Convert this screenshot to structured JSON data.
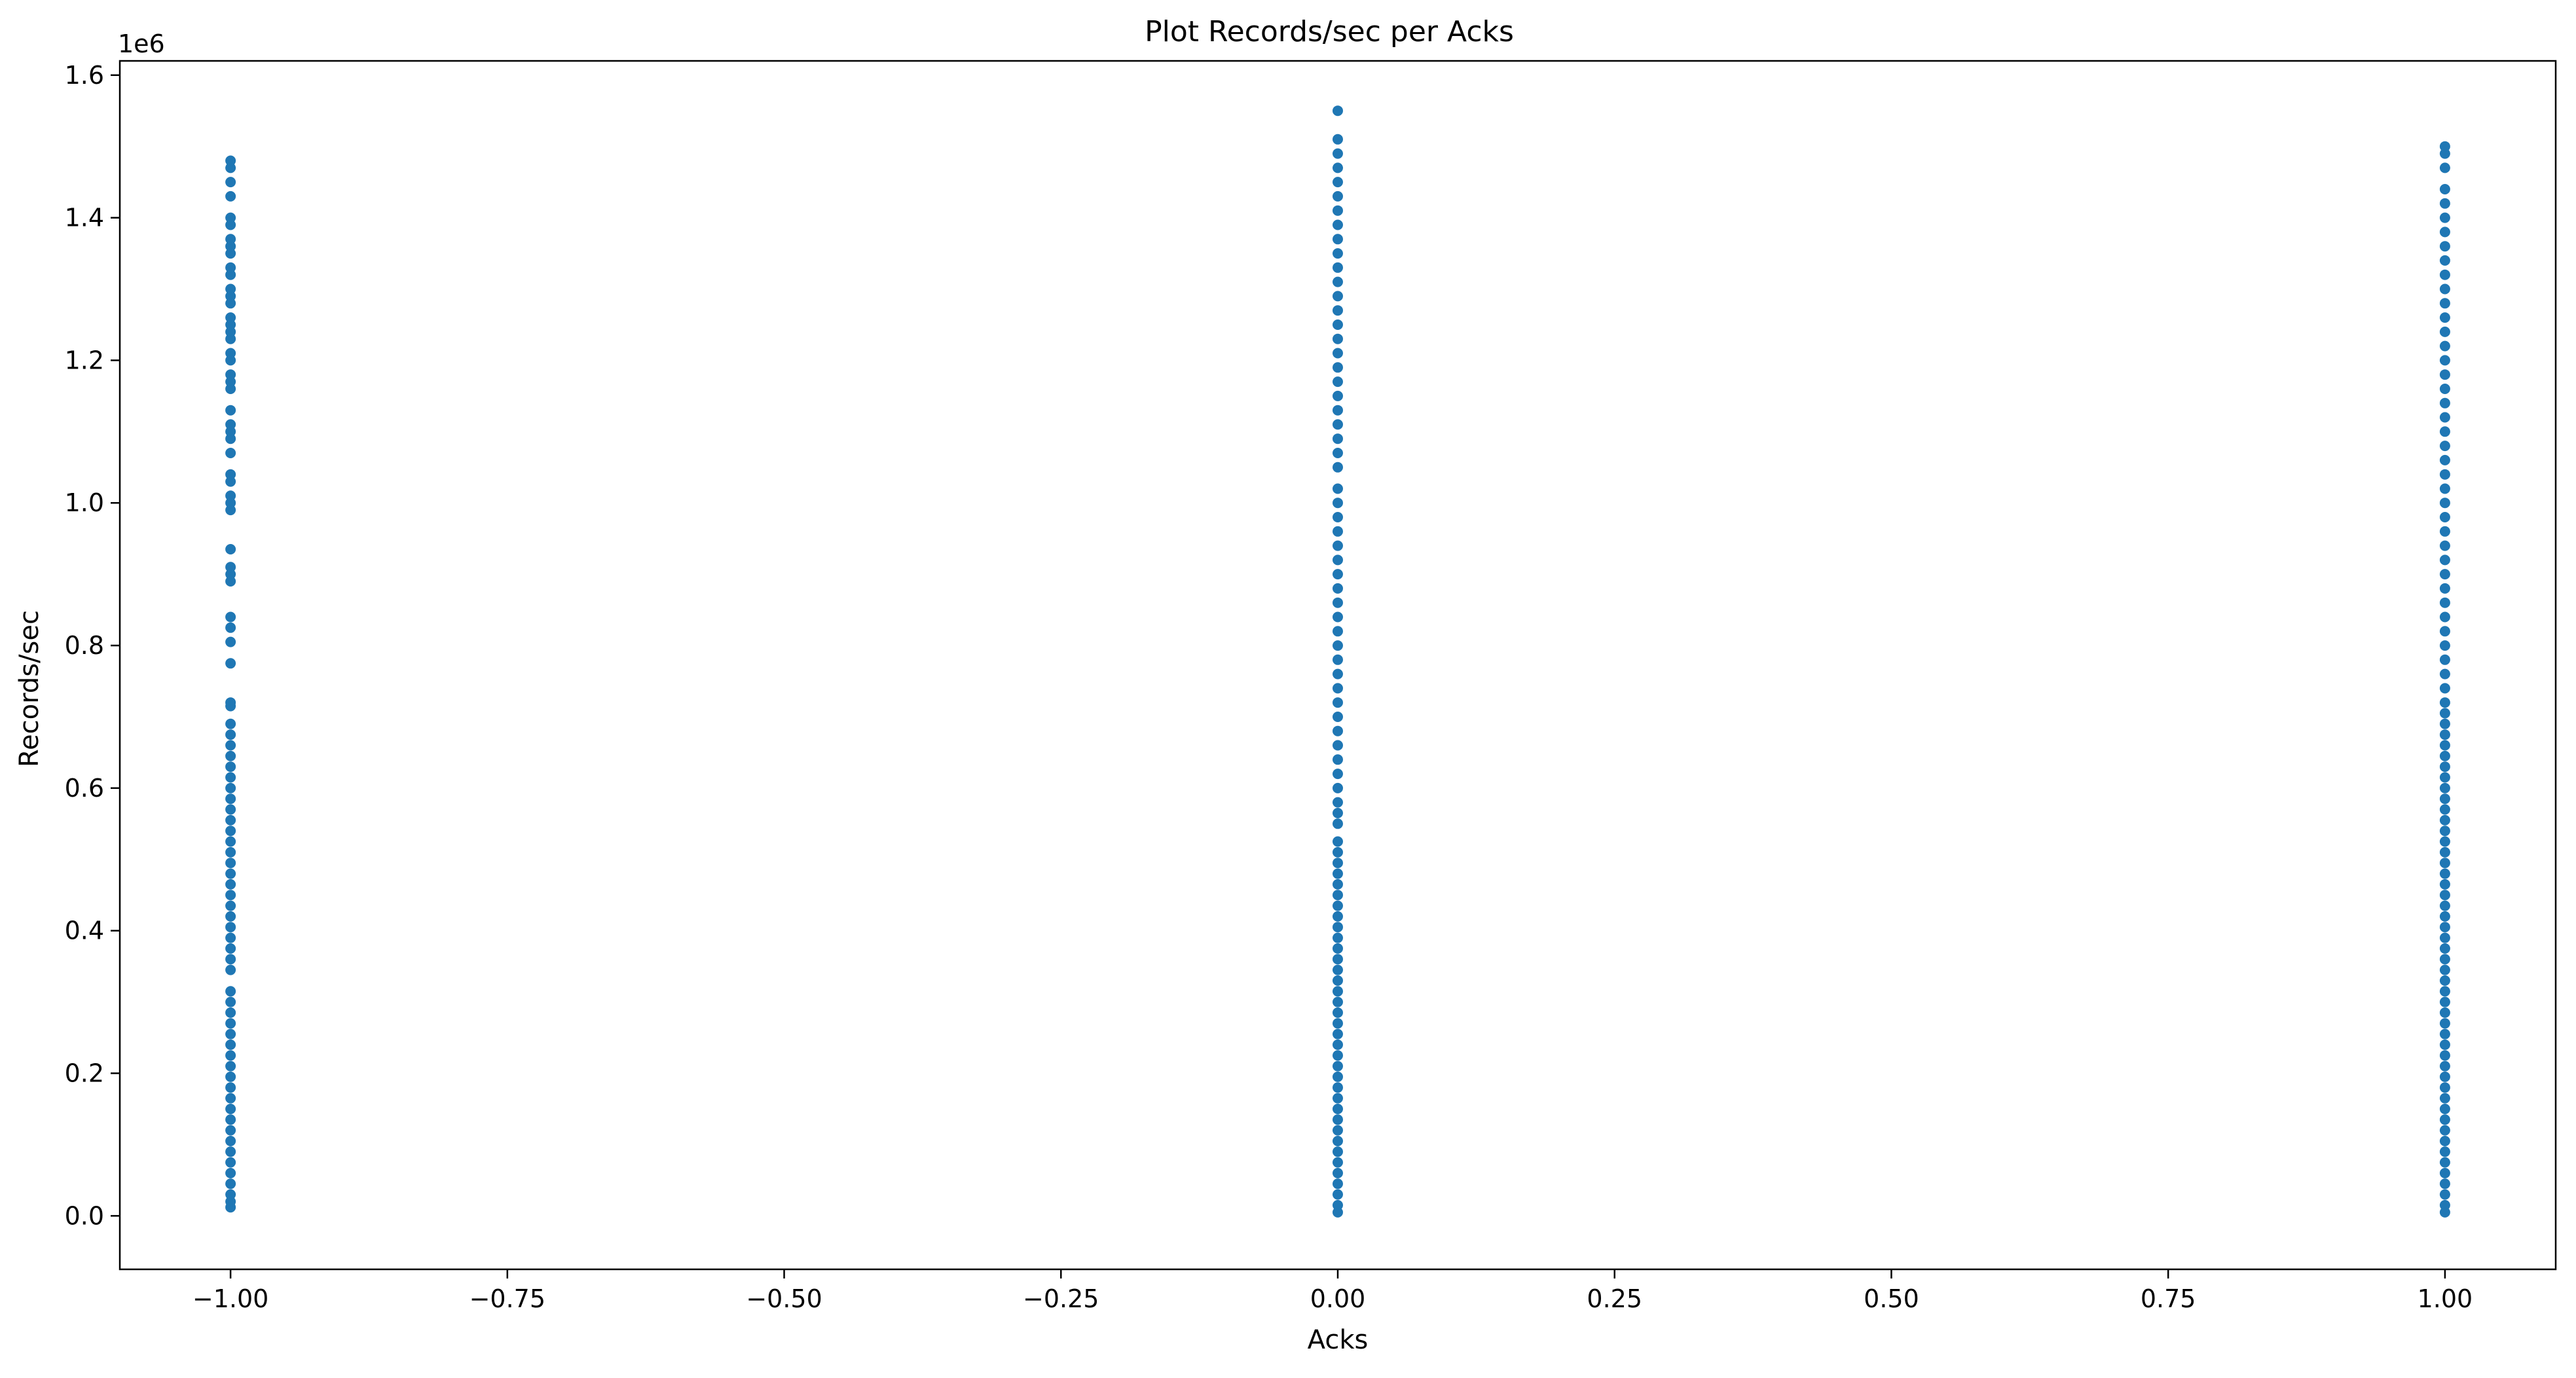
{
  "chart_data": {
    "type": "scatter",
    "title": "Plot Records/sec per Acks",
    "xlabel": "Acks",
    "ylabel": "Records/sec",
    "y_offset_text": "1e6",
    "xlim": [
      -1.1,
      1.1
    ],
    "ylim": [
      -0.075,
      1.62
    ],
    "y_scale_factor": 1000000,
    "x_ticks": [
      -1.0,
      -0.75,
      -0.5,
      -0.25,
      0.0,
      0.25,
      0.5,
      0.75,
      1.0
    ],
    "x_tick_labels": [
      "−1.00",
      "−0.75",
      "−0.50",
      "−0.25",
      "0.00",
      "0.25",
      "0.50",
      "0.75",
      "1.00"
    ],
    "y_ticks": [
      0.0,
      0.2,
      0.4,
      0.6,
      0.8,
      1.0,
      1.2,
      1.4,
      1.6
    ],
    "y_tick_labels": [
      "0.0",
      "0.2",
      "0.4",
      "0.6",
      "0.8",
      "1.0",
      "1.2",
      "1.4",
      "1.6"
    ],
    "grid": false,
    "legend": "none",
    "marker_color": "#1f77b4",
    "series": [
      {
        "x": -1,
        "y": [
          0.012,
          0.02,
          0.03,
          0.045,
          0.06,
          0.075,
          0.09,
          0.105,
          0.12,
          0.135,
          0.15,
          0.165,
          0.18,
          0.195,
          0.21,
          0.225,
          0.24,
          0.255,
          0.27,
          0.285,
          0.3,
          0.315,
          0.345,
          0.36,
          0.375,
          0.39,
          0.405,
          0.42,
          0.435,
          0.45,
          0.465,
          0.48,
          0.495,
          0.51,
          0.525,
          0.54,
          0.555,
          0.57,
          0.585,
          0.6,
          0.615,
          0.63,
          0.645,
          0.66,
          0.675,
          0.69,
          0.715,
          0.72,
          0.775,
          0.805,
          0.825,
          0.84,
          0.89,
          0.9,
          0.91,
          0.935,
          0.99,
          1.0,
          1.01,
          1.03,
          1.04,
          1.07,
          1.09,
          1.1,
          1.11,
          1.13,
          1.16,
          1.17,
          1.18,
          1.2,
          1.21,
          1.23,
          1.24,
          1.25,
          1.26,
          1.28,
          1.29,
          1.3,
          1.32,
          1.33,
          1.35,
          1.36,
          1.37,
          1.39,
          1.4,
          1.43,
          1.45,
          1.47,
          1.48
        ]
      },
      {
        "x": 0,
        "y": [
          0.005,
          0.015,
          0.03,
          0.045,
          0.06,
          0.075,
          0.09,
          0.105,
          0.12,
          0.135,
          0.15,
          0.165,
          0.18,
          0.195,
          0.21,
          0.225,
          0.24,
          0.255,
          0.27,
          0.285,
          0.3,
          0.315,
          0.33,
          0.345,
          0.36,
          0.375,
          0.39,
          0.405,
          0.42,
          0.435,
          0.45,
          0.465,
          0.48,
          0.495,
          0.51,
          0.525,
          0.55,
          0.565,
          0.58,
          0.6,
          0.62,
          0.64,
          0.66,
          0.68,
          0.7,
          0.72,
          0.74,
          0.76,
          0.78,
          0.8,
          0.82,
          0.84,
          0.86,
          0.88,
          0.9,
          0.92,
          0.94,
          0.96,
          0.98,
          1.0,
          1.02,
          1.05,
          1.07,
          1.09,
          1.11,
          1.13,
          1.15,
          1.17,
          1.19,
          1.21,
          1.23,
          1.25,
          1.27,
          1.29,
          1.31,
          1.33,
          1.35,
          1.37,
          1.39,
          1.41,
          1.43,
          1.45,
          1.47,
          1.49,
          1.51,
          1.55
        ]
      },
      {
        "x": 1,
        "y": [
          0.005,
          0.015,
          0.03,
          0.045,
          0.06,
          0.075,
          0.09,
          0.105,
          0.12,
          0.135,
          0.15,
          0.165,
          0.18,
          0.195,
          0.21,
          0.225,
          0.24,
          0.255,
          0.27,
          0.285,
          0.3,
          0.315,
          0.33,
          0.345,
          0.36,
          0.375,
          0.39,
          0.405,
          0.42,
          0.435,
          0.45,
          0.465,
          0.48,
          0.495,
          0.51,
          0.525,
          0.54,
          0.555,
          0.57,
          0.585,
          0.6,
          0.615,
          0.63,
          0.645,
          0.66,
          0.675,
          0.69,
          0.705,
          0.72,
          0.74,
          0.76,
          0.78,
          0.8,
          0.82,
          0.84,
          0.86,
          0.88,
          0.9,
          0.92,
          0.94,
          0.96,
          0.98,
          1.0,
          1.02,
          1.04,
          1.06,
          1.08,
          1.1,
          1.12,
          1.14,
          1.16,
          1.18,
          1.2,
          1.22,
          1.24,
          1.26,
          1.28,
          1.3,
          1.32,
          1.34,
          1.36,
          1.38,
          1.4,
          1.42,
          1.44,
          1.47,
          1.49,
          1.5
        ]
      }
    ]
  }
}
